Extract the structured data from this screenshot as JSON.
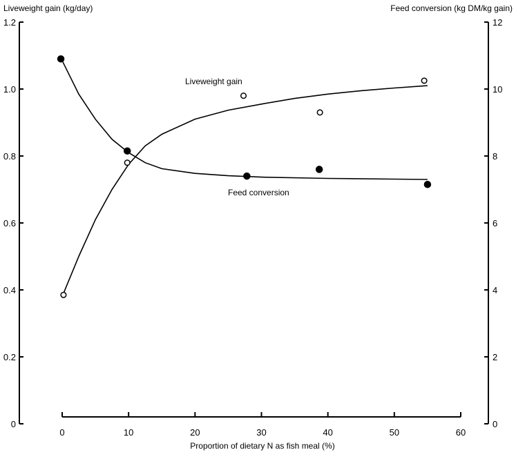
{
  "chart_data": {
    "type": "scatter",
    "title": "",
    "xlabel": "Proportion of dietary N as fish meal (%)",
    "ylabel": "Liveweight gain (kg/day)",
    "y2label": "Feed conversion (kg DM/kg gain)",
    "xlim": [
      0,
      60
    ],
    "ylim": [
      0,
      1.2
    ],
    "y2lim": [
      0,
      12
    ],
    "xticks": [
      "0",
      "10",
      "20",
      "30",
      "40",
      "50",
      "60"
    ],
    "yticks": [
      "0",
      "0.2",
      "0.4",
      "0.6",
      "0.8",
      "1.0",
      "1.2"
    ],
    "y2ticks": [
      "0",
      "2",
      "4",
      "6",
      "8",
      "10",
      "12"
    ],
    "grid": false,
    "series": [
      {
        "name": "Liveweight gain",
        "axis": "left",
        "marker": "open-circle",
        "points": [
          [
            0.2,
            0.385
          ],
          [
            9.8,
            0.78
          ],
          [
            27.3,
            0.98
          ],
          [
            38.8,
            0.93
          ],
          [
            54.5,
            1.025
          ]
        ],
        "curve": [
          [
            0,
            0.38
          ],
          [
            2.5,
            0.5
          ],
          [
            5,
            0.61
          ],
          [
            7.5,
            0.7
          ],
          [
            10,
            0.775
          ],
          [
            12.5,
            0.83
          ],
          [
            15,
            0.865
          ],
          [
            20,
            0.91
          ],
          [
            25,
            0.937
          ],
          [
            30,
            0.955
          ],
          [
            35,
            0.972
          ],
          [
            40,
            0.985
          ],
          [
            45,
            0.995
          ],
          [
            50,
            1.003
          ],
          [
            55,
            1.01
          ]
        ]
      },
      {
        "name": "Feed conversion",
        "axis": "right",
        "marker": "filled-circle",
        "points": [
          [
            -0.2,
            10.9
          ],
          [
            9.8,
            8.15
          ],
          [
            27.8,
            7.4
          ],
          [
            38.7,
            7.6
          ],
          [
            55,
            7.15
          ]
        ],
        "curve": [
          [
            0,
            10.85
          ],
          [
            2.5,
            9.85
          ],
          [
            5,
            9.1
          ],
          [
            7.5,
            8.5
          ],
          [
            10,
            8.1
          ],
          [
            12.5,
            7.8
          ],
          [
            15,
            7.62
          ],
          [
            20,
            7.48
          ],
          [
            25,
            7.41
          ],
          [
            30,
            7.37
          ],
          [
            40,
            7.33
          ],
          [
            50,
            7.31
          ],
          [
            55,
            7.3
          ]
        ]
      }
    ],
    "annotations": [
      "Liveweight gain",
      "Feed conversion"
    ]
  }
}
